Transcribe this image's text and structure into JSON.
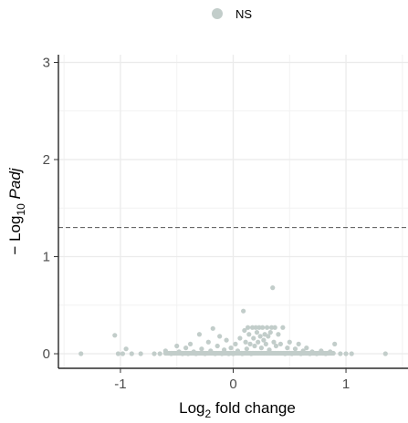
{
  "chart_data": {
    "type": "scatter",
    "title": "",
    "legend": {
      "placement": "top",
      "entries": [
        {
          "label": "NS",
          "color": "#c2cdca"
        }
      ]
    },
    "xlabel": {
      "prefix": "Log",
      "sub": "2",
      "suffix": " fold change"
    },
    "ylabel": {
      "prefix": "− Log",
      "sub": "10",
      "italic": " Padj"
    },
    "xlim": [
      -1.55,
      1.55
    ],
    "ylim": [
      -0.15,
      3.08
    ],
    "x_ticks": [
      -1,
      0,
      1
    ],
    "x_tick_labels": [
      "-1",
      "0",
      "1"
    ],
    "y_ticks": [
      0,
      1,
      2,
      3
    ],
    "y_tick_labels": [
      "0",
      "1",
      "2",
      "3"
    ],
    "threshold_y": 1.3,
    "threshold_style": "dashed",
    "grid": true,
    "point_color": "#c2cdca",
    "series": [
      {
        "name": "NS",
        "points": [
          [
            -1.35,
            0.0
          ],
          [
            -1.02,
            0.0
          ],
          [
            -0.98,
            0.0
          ],
          [
            -0.9,
            0.0
          ],
          [
            -0.82,
            0.0
          ],
          [
            -1.05,
            0.19
          ],
          [
            -0.95,
            0.05
          ],
          [
            -0.7,
            0.0
          ],
          [
            -0.65,
            0.0
          ],
          [
            -0.6,
            0.03
          ],
          [
            -0.55,
            0.0
          ],
          [
            -0.5,
            0.08
          ],
          [
            -0.48,
            0.02
          ],
          [
            -0.45,
            0.0
          ],
          [
            -0.42,
            0.06
          ],
          [
            -0.4,
            0.0
          ],
          [
            -0.38,
            0.1
          ],
          [
            -0.35,
            0.02
          ],
          [
            -0.33,
            0.0
          ],
          [
            -0.3,
            0.2
          ],
          [
            -0.28,
            0.05
          ],
          [
            -0.25,
            0.0
          ],
          [
            -0.22,
            0.12
          ],
          [
            -0.2,
            0.03
          ],
          [
            -0.18,
            0.26
          ],
          [
            -0.16,
            0.0
          ],
          [
            -0.14,
            0.08
          ],
          [
            -0.12,
            0.18
          ],
          [
            -0.1,
            0.0
          ],
          [
            -0.08,
            0.04
          ],
          [
            -0.06,
            0.14
          ],
          [
            -0.04,
            0.0
          ],
          [
            -0.02,
            0.06
          ],
          [
            0.0,
            0.0
          ],
          [
            0.02,
            0.1
          ],
          [
            0.04,
            0.03
          ],
          [
            0.06,
            0.16
          ],
          [
            0.08,
            0.0
          ],
          [
            0.09,
            0.44
          ],
          [
            0.1,
            0.24
          ],
          [
            0.11,
            0.12
          ],
          [
            0.12,
            0.05
          ],
          [
            0.13,
            0.27
          ],
          [
            0.14,
            0.2
          ],
          [
            0.15,
            0.1
          ],
          [
            0.16,
            0.0
          ],
          [
            0.17,
            0.27
          ],
          [
            0.18,
            0.16
          ],
          [
            0.19,
            0.08
          ],
          [
            0.2,
            0.27
          ],
          [
            0.21,
            0.22
          ],
          [
            0.22,
            0.12
          ],
          [
            0.23,
            0.27
          ],
          [
            0.24,
            0.18
          ],
          [
            0.25,
            0.06
          ],
          [
            0.26,
            0.27
          ],
          [
            0.27,
            0.14
          ],
          [
            0.28,
            0.2
          ],
          [
            0.29,
            0.1
          ],
          [
            0.3,
            0.27
          ],
          [
            0.31,
            0.18
          ],
          [
            0.32,
            0.04
          ],
          [
            0.33,
            0.22
          ],
          [
            0.34,
            0.27
          ],
          [
            0.35,
            0.68
          ],
          [
            0.36,
            0.12
          ],
          [
            0.37,
            0.27
          ],
          [
            0.38,
            0.08
          ],
          [
            0.4,
            0.2
          ],
          [
            0.42,
            0.1
          ],
          [
            0.44,
            0.27
          ],
          [
            0.46,
            0.0
          ],
          [
            0.48,
            0.06
          ],
          [
            0.5,
            0.12
          ],
          [
            0.52,
            0.0
          ],
          [
            0.55,
            0.05
          ],
          [
            0.58,
            0.1
          ],
          [
            0.6,
            0.0
          ],
          [
            0.62,
            0.03
          ],
          [
            0.65,
            0.06
          ],
          [
            0.68,
            0.0
          ],
          [
            0.7,
            0.02
          ],
          [
            0.74,
            0.0
          ],
          [
            0.78,
            0.03
          ],
          [
            0.82,
            0.0
          ],
          [
            0.86,
            0.02
          ],
          [
            0.9,
            0.1
          ],
          [
            0.95,
            0.0
          ],
          [
            1.0,
            0.0
          ],
          [
            1.05,
            0.0
          ],
          [
            1.35,
            0.0
          ]
        ]
      }
    ]
  }
}
